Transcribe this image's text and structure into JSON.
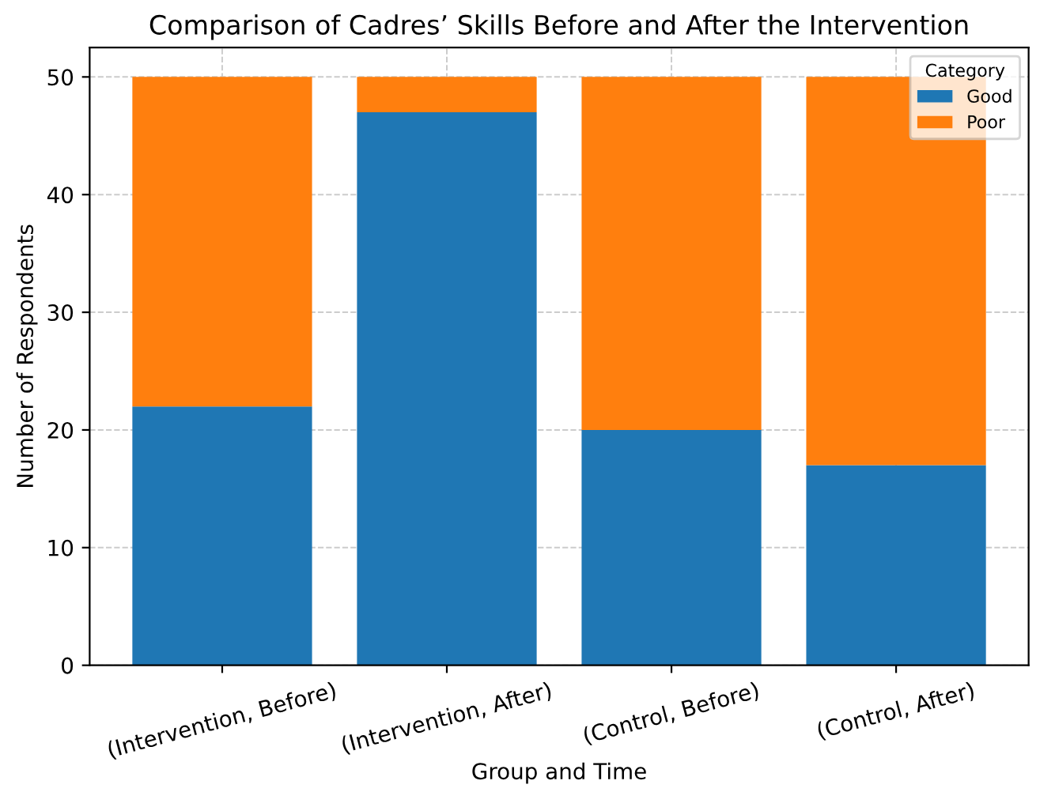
{
  "chart_data": {
    "type": "bar",
    "title": "Comparison of Cadres’ Skills Before and After the Intervention",
    "xlabel": "Group and Time",
    "ylabel": "Number of Respondents",
    "legend_title": "Category",
    "categories": [
      "(Intervention, Before)",
      "(Intervention, After)",
      "(Control, Before)",
      "(Control, After)"
    ],
    "series": [
      {
        "name": "Good",
        "color": "#1f77b4",
        "values": [
          22,
          47,
          20,
          17
        ]
      },
      {
        "name": "Poor",
        "color": "#ff7f0e",
        "values": [
          28,
          3,
          30,
          33
        ]
      }
    ],
    "stacked": true,
    "ylim": [
      0,
      52.5
    ],
    "yticks": [
      0,
      10,
      20,
      30,
      40,
      50
    ],
    "grid": true,
    "legend": "top right"
  }
}
